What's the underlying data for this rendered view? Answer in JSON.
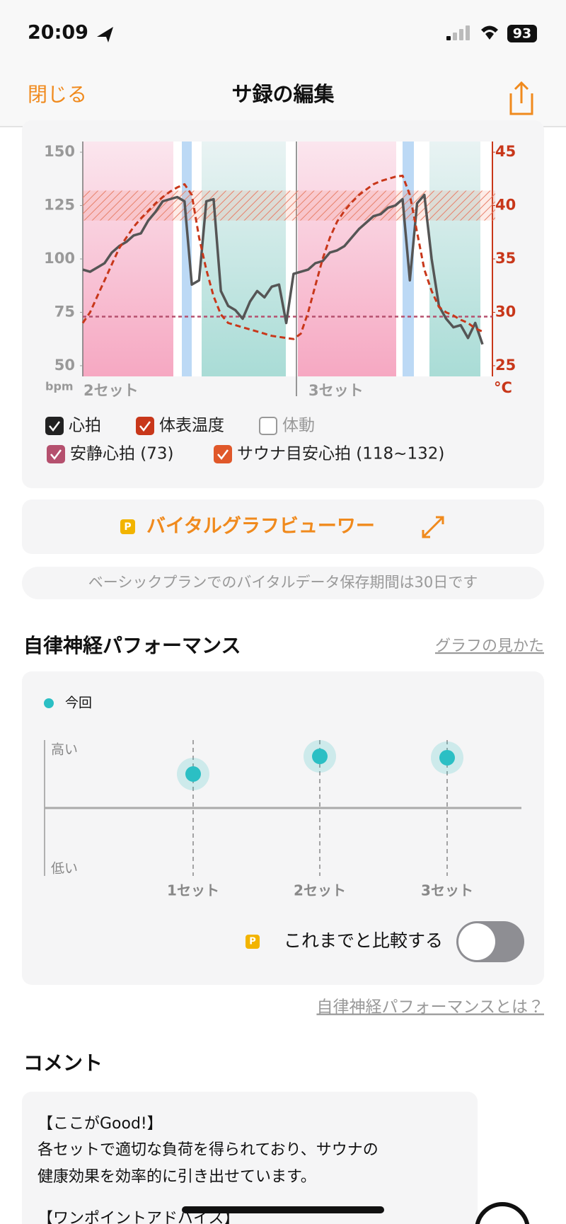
{
  "status_bar": {
    "time": "20:09",
    "battery": "93"
  },
  "nav": {
    "close": "閉じる",
    "title": "サ録の編集"
  },
  "vital_chart": {
    "type": "line",
    "y_unit": "bpm",
    "y2_unit": "°C",
    "set_labels": [
      "2セット",
      "3セット"
    ],
    "ylim": [
      45,
      155
    ],
    "yticks": [
      50,
      75,
      100,
      125,
      150
    ],
    "y2lim": [
      24,
      46
    ],
    "y2ticks": [
      25,
      30,
      35,
      40,
      45
    ],
    "series": [
      {
        "name": "心拍",
        "color": "#555555",
        "checked": true,
        "values": [
          95,
          94,
          96,
          98,
          103,
          106,
          108,
          111,
          112,
          118,
          122,
          127,
          128,
          129,
          127,
          88,
          90,
          127,
          128,
          85,
          78,
          76,
          72,
          80,
          85,
          82,
          87,
          88,
          70,
          93,
          94,
          95,
          98,
          99,
          103,
          104,
          106,
          110,
          114,
          117,
          120,
          121,
          124,
          125,
          128,
          90,
          126,
          130,
          100,
          78,
          72,
          68,
          69,
          63,
          70,
          60
        ]
      },
      {
        "name": "体表温度",
        "color": "#c8371a",
        "axis": "y2",
        "checked": true,
        "values": [
          29,
          30,
          31.5,
          33,
          34.5,
          36,
          37,
          38,
          38.8,
          39.5,
          40.2,
          40.8,
          41.3,
          41.7,
          42,
          41,
          37,
          34,
          31.5,
          29.8,
          29,
          28.8,
          28.6,
          28.4,
          28.2,
          28,
          27.8,
          27.7,
          27.6,
          27.5,
          28,
          30,
          32.5,
          35,
          37,
          38.5,
          39.5,
          40.3,
          41,
          41.5,
          42,
          42.3,
          42.5,
          42.7,
          42.8,
          41,
          37.5,
          34,
          32,
          30.5,
          30,
          29.7,
          29.3,
          29,
          28.5,
          28.2
        ]
      }
    ],
    "motion": {
      "name": "体動",
      "checked": false
    },
    "resting_hr": {
      "label": "安静心拍 (73)",
      "value": 73,
      "color": "#b5506e"
    },
    "sauna_zone": {
      "label": "サウナ目安心拍 (118~132)",
      "range": [
        118,
        132
      ],
      "color": "#e0582a"
    }
  },
  "viewer_button": {
    "badge": "P",
    "label": "バイタルグラフビューワー"
  },
  "notice": "ベーシックプランでのバイタルデータ保存期間は30日です",
  "autonomic": {
    "title": "自律神経パフォーマンス",
    "help_link": "グラフの見かた",
    "chart": {
      "type": "scatter",
      "categories": [
        "1セット",
        "2セット",
        "3セット"
      ],
      "ylim": [
        -1,
        1
      ],
      "y_high_label": "高い",
      "y_low_label": "低い",
      "series": [
        {
          "name": "今回",
          "color": "#2bbfc4",
          "values": [
            0.5,
            0.76,
            0.74
          ]
        }
      ]
    },
    "compare": {
      "badge": "P",
      "label": "これまでと比較する",
      "on": false
    },
    "about_link": "自律神経パフォーマンスとは？"
  },
  "comment": {
    "title": "コメント",
    "lines": [
      "【ここがGood!】",
      "各セットで適切な負荷を得られており、サウナの",
      "健康効果を効率的に引き出せています。",
      "【ワンポイントアドバイス】"
    ]
  }
}
